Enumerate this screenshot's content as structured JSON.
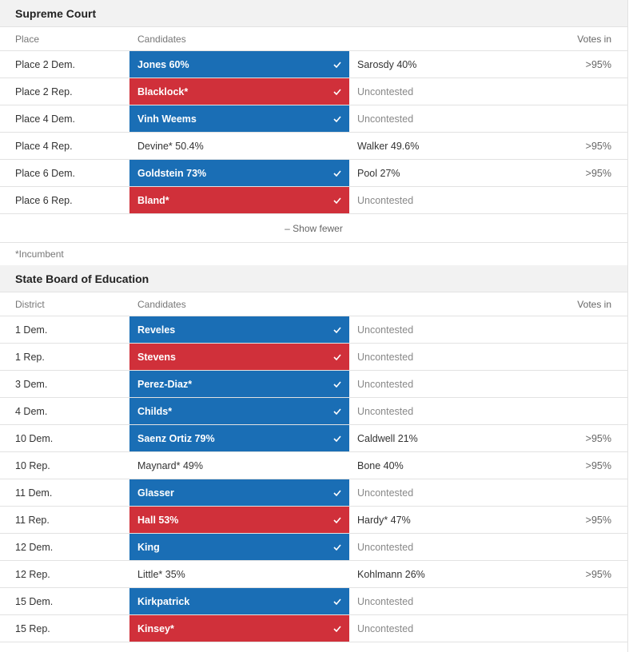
{
  "supreme": {
    "title": "Supreme Court",
    "col1": "Place",
    "col2": "Candidates",
    "col4": "Votes in",
    "rows": [
      {
        "label": "Place 2 Dem.",
        "c2": "Jones 60%",
        "c2_style": "dem",
        "c3": "Sarosdy 40%",
        "c3_muted": false,
        "votes": ">95%"
      },
      {
        "label": "Place 2 Rep.",
        "c2": "Blacklock*",
        "c2_style": "rep",
        "c3": "Uncontested",
        "c3_muted": true,
        "votes": ""
      },
      {
        "label": "Place 4 Dem.",
        "c2": "Vinh Weems",
        "c2_style": "dem",
        "c3": "Uncontested",
        "c3_muted": true,
        "votes": ""
      },
      {
        "label": "Place 4 Rep.",
        "c2": "Devine* 50.4%",
        "c2_style": "",
        "c3": "Walker 49.6%",
        "c3_muted": false,
        "votes": ">95%"
      },
      {
        "label": "Place 6 Dem.",
        "c2": "Goldstein 73%",
        "c2_style": "dem",
        "c3": "Pool 27%",
        "c3_muted": false,
        "votes": ">95%"
      },
      {
        "label": "Place 6 Rep.",
        "c2": "Bland*",
        "c2_style": "rep",
        "c3": "Uncontested",
        "c3_muted": true,
        "votes": ""
      }
    ],
    "show_fewer": "– Show fewer",
    "footnote": "*Incumbent"
  },
  "sboe": {
    "title": "State Board of Education",
    "col1": "District",
    "col2": "Candidates",
    "col4": "Votes in",
    "rows": [
      {
        "label": "1 Dem.",
        "c2": "Reveles",
        "c2_style": "dem",
        "c3": "Uncontested",
        "c3_muted": true,
        "votes": ""
      },
      {
        "label": "1 Rep.",
        "c2": "Stevens",
        "c2_style": "rep",
        "c3": "Uncontested",
        "c3_muted": true,
        "votes": ""
      },
      {
        "label": "3 Dem.",
        "c2": "Perez-Diaz*",
        "c2_style": "dem",
        "c3": "Uncontested",
        "c3_muted": true,
        "votes": ""
      },
      {
        "label": "4 Dem.",
        "c2": "Childs*",
        "c2_style": "dem",
        "c3": "Uncontested",
        "c3_muted": true,
        "votes": ""
      },
      {
        "label": "10 Dem.",
        "c2": "Saenz Ortiz 79%",
        "c2_style": "dem",
        "c3": "Caldwell 21%",
        "c3_muted": false,
        "votes": ">95%"
      },
      {
        "label": "10 Rep.",
        "c2": "Maynard* 49%",
        "c2_style": "",
        "c3": "Bone 40%",
        "c3_muted": false,
        "votes": ">95%"
      },
      {
        "label": "11 Dem.",
        "c2": "Glasser",
        "c2_style": "dem",
        "c3": "Uncontested",
        "c3_muted": true,
        "votes": ""
      },
      {
        "label": "11 Rep.",
        "c2": "Hall 53%",
        "c2_style": "rep",
        "c3": "Hardy* 47%",
        "c3_muted": false,
        "votes": ">95%"
      },
      {
        "label": "12 Dem.",
        "c2": "King",
        "c2_style": "dem",
        "c3": "Uncontested",
        "c3_muted": true,
        "votes": ""
      },
      {
        "label": "12 Rep.",
        "c2": "Little* 35%",
        "c2_style": "",
        "c3": "Kohlmann 26%",
        "c3_muted": false,
        "votes": ">95%"
      },
      {
        "label": "15 Dem.",
        "c2": "Kirkpatrick",
        "c2_style": "dem",
        "c3": "Uncontested",
        "c3_muted": true,
        "votes": ""
      },
      {
        "label": "15 Rep.",
        "c2": "Kinsey*",
        "c2_style": "rep",
        "c3": "Uncontested",
        "c3_muted": true,
        "votes": ""
      }
    ]
  },
  "colors": {
    "dem": "#1a6eb5",
    "rep": "#d0303a"
  },
  "icons": {
    "winner": "check-icon"
  }
}
